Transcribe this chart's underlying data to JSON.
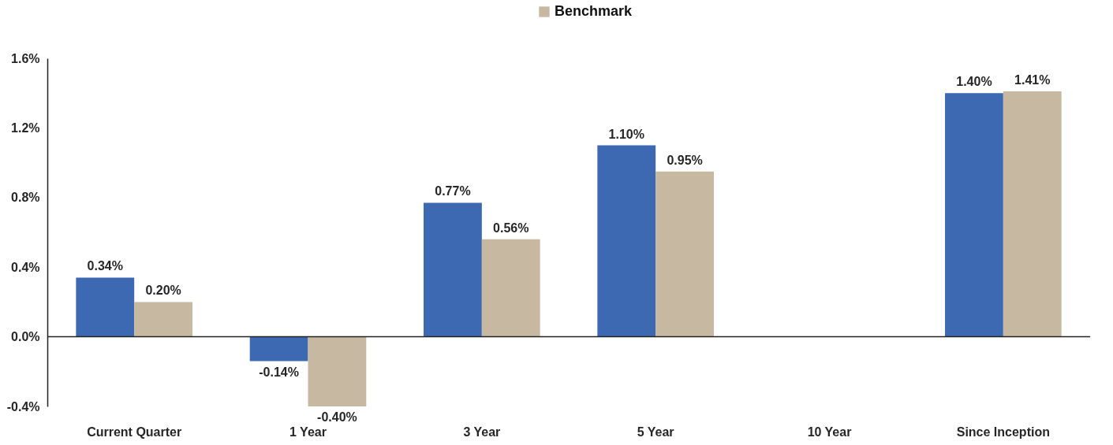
{
  "chart_data": {
    "type": "bar",
    "categories": [
      "Current Quarter",
      "1 Year",
      "3 Year",
      "5 Year",
      "10 Year",
      "Since Inception"
    ],
    "series": [
      {
        "color": "#3d68b2",
        "values": [
          0.34,
          -0.14,
          0.77,
          1.1,
          null,
          1.4
        ],
        "value_labels": [
          "0.34%",
          "-0.14%",
          "0.77%",
          "1.10%",
          null,
          "1.40%"
        ]
      },
      {
        "name": "Benchmark",
        "color": "#c7b8a1",
        "values": [
          0.2,
          -0.4,
          0.56,
          0.95,
          null,
          1.41
        ],
        "value_labels": [
          "0.20%",
          "-0.40%",
          "0.56%",
          "0.95%",
          null,
          "1.41%"
        ]
      }
    ],
    "ylim": [
      -0.4,
      1.6
    ],
    "yticks": [
      {
        "value": -0.4,
        "label": "-0.4%"
      },
      {
        "value": 0.0,
        "label": "0.0%"
      },
      {
        "value": 0.4,
        "label": "0.4%"
      },
      {
        "value": 0.8,
        "label": "0.8%"
      },
      {
        "value": 1.2,
        "label": "1.2%"
      },
      {
        "value": 1.6,
        "label": "1.6%"
      }
    ],
    "legend": "top"
  }
}
